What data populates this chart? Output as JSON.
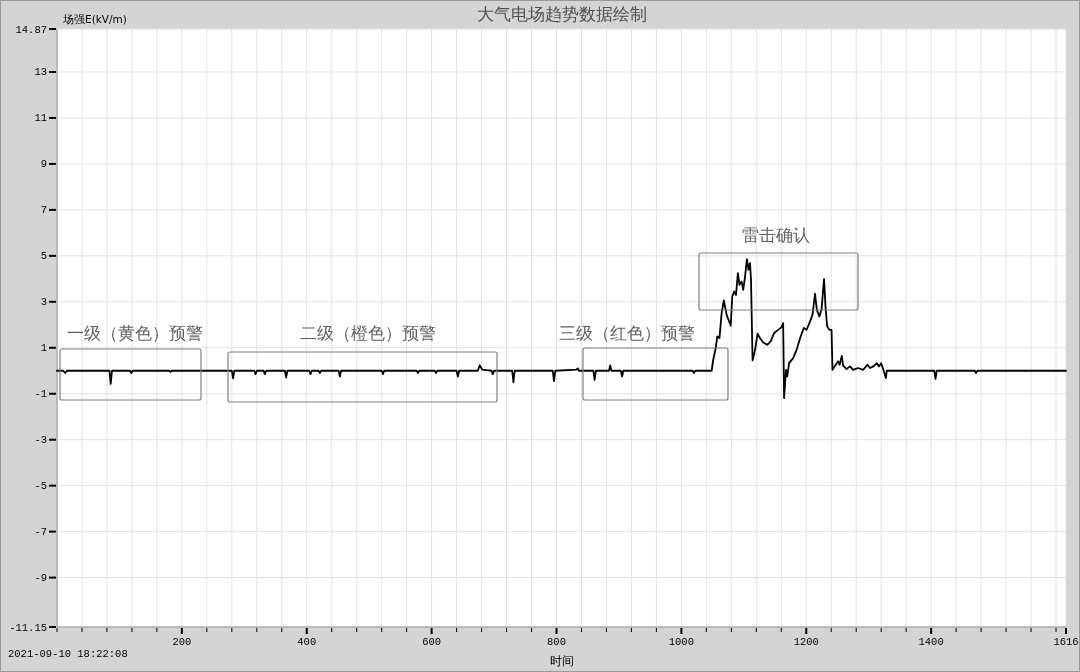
{
  "chart_data": {
    "type": "line",
    "title": "大气电场趋势数据绘制",
    "xlabel": "时间",
    "ylabel": "场强E(kV/m)",
    "annotations": [
      "2021-09-10 18:22:08",
      "一级（黄色）预警",
      "二级（橙色）预警",
      "三级（红色）预警",
      "雷击确认"
    ],
    "x": [
      0,
      10,
      13,
      16,
      60,
      84,
      86,
      88,
      117,
      119,
      121,
      180,
      182,
      184,
      280,
      282,
      284,
      316,
      318,
      320,
      331,
      333,
      335,
      365,
      367,
      369,
      404,
      406,
      408,
      419,
      421,
      423,
      451,
      453,
      455,
      520,
      522,
      524,
      576,
      578,
      580,
      605,
      607,
      609,
      640,
      642,
      644,
      674,
      677,
      681,
      696,
      698,
      700,
      729,
      731,
      733,
      794,
      796,
      798,
      832,
      834,
      836,
      859,
      861,
      863,
      884,
      886,
      888,
      903,
      905,
      907,
      1018,
      1020,
      1022,
      1048.5,
      1051,
      1055,
      1057.5,
      1061,
      1064.5,
      1068,
      1072.5,
      1075.5,
      1079,
      1081.5,
      1084.5,
      1087.5,
      1090.5,
      1093,
      1096.5,
      1099,
      1102,
      1105,
      1107.5,
      1110,
      1111.5,
      1114,
      1118,
      1122,
      1126,
      1131,
      1137.5,
      1143,
      1148.5,
      1155,
      1160.5,
      1163,
      1164.5,
      1167.5,
      1169.5,
      1172.5,
      1179,
      1184.5,
      1191,
      1196,
      1200.5,
      1206,
      1210,
      1214,
      1217,
      1221,
      1224.5,
      1228.5,
      1231,
      1233.5,
      1237,
      1240.5,
      1242,
      1245.5,
      1251,
      1253.5,
      1257,
      1259,
      1264.5,
      1270,
      1275,
      1283,
      1291,
      1298,
      1302,
      1307.5,
      1313,
      1316.5,
      1320,
      1323.5,
      1327.5,
      1329,
      1405,
      1407,
      1409,
      1470,
      1472,
      1474,
      1616
    ],
    "series": [
      {
        "color": "#000000",
        "values": [
          0,
          0,
          -0.1,
          0,
          0,
          0,
          -0.57,
          0,
          0,
          -0.1,
          0,
          0,
          -0.05,
          0,
          0,
          -0.33,
          0,
          0,
          -0.15,
          0,
          0,
          -0.15,
          0,
          0,
          -0.3,
          0,
          0,
          -0.15,
          0,
          0,
          -0.1,
          0,
          0,
          -0.25,
          0,
          0,
          -0.15,
          0,
          0,
          -0.1,
          0,
          0,
          -0.1,
          0,
          0,
          -0.25,
          0,
          0,
          0.24,
          0.05,
          0,
          -0.15,
          0,
          0,
          -0.5,
          0,
          0,
          -0.45,
          0,
          0.05,
          0.1,
          0,
          0,
          -0.4,
          0,
          0,
          0.23,
          0,
          0,
          -0.25,
          0,
          0,
          -0.1,
          0,
          0,
          0.48,
          0.99,
          1.49,
          1.42,
          2.51,
          3.06,
          2.43,
          2.22,
          1.96,
          3.23,
          3.45,
          3.3,
          4.25,
          3.74,
          3.88,
          3.52,
          4.1,
          4.86,
          4.39,
          4.68,
          3.96,
          0.45,
          0.91,
          1.61,
          1.42,
          1.23,
          1.13,
          1.28,
          1.64,
          1.78,
          1.9,
          2.07,
          -1.19,
          0.04,
          -0.25,
          0.33,
          0.55,
          0.91,
          1.49,
          1.86,
          1.78,
          2.14,
          2.43,
          3.35,
          2.65,
          2.36,
          2.68,
          3.99,
          2.72,
          1.93,
          1.78,
          1.78,
          0.04,
          0.19,
          0.41,
          0.26,
          0.65,
          0.22,
          0.07,
          0.19,
          0.04,
          0.12,
          0.04,
          0.26,
          0.12,
          0.19,
          0.33,
          0.19,
          0.33,
          0.04,
          -0.32,
          0,
          0,
          -0.35,
          0,
          0,
          -0.1,
          0,
          0
        ]
      }
    ],
    "xlim": [
      0,
      1616
    ],
    "ylim": [
      -11.15,
      14.87
    ],
    "xticks": [
      {
        "value": 0,
        "label": null
      },
      {
        "value": 40,
        "label": null
      },
      {
        "value": 80,
        "label": null
      },
      {
        "value": 120,
        "label": null
      },
      {
        "value": 160,
        "label": null
      },
      200,
      {
        "value": 240,
        "label": null
      },
      {
        "value": 280,
        "label": null
      },
      {
        "value": 320,
        "label": null
      },
      {
        "value": 360,
        "label": null
      },
      400,
      {
        "value": 440,
        "label": null
      },
      {
        "value": 480,
        "label": null
      },
      {
        "value": 520,
        "label": null
      },
      {
        "value": 560,
        "label": null
      },
      600,
      {
        "value": 640,
        "label": null
      },
      {
        "value": 680,
        "label": null
      },
      {
        "value": 720,
        "label": null
      },
      {
        "value": 760,
        "label": null
      },
      800,
      {
        "value": 840,
        "label": null
      },
      {
        "value": 880,
        "label": null
      },
      {
        "value": 920,
        "label": null
      },
      {
        "value": 960,
        "label": null
      },
      1000,
      {
        "value": 1040,
        "label": null
      },
      {
        "value": 1080,
        "label": null
      },
      {
        "value": 1120,
        "label": null
      },
      {
        "value": 1160,
        "label": null
      },
      1200,
      {
        "value": 1240,
        "label": null
      },
      {
        "value": 1280,
        "label": null
      },
      {
        "value": 1320,
        "label": null
      },
      {
        "value": 1360,
        "label": null
      },
      1400,
      {
        "value": 1440,
        "label": null
      },
      {
        "value": 1480,
        "label": null
      },
      {
        "value": 1520,
        "label": null
      },
      {
        "value": 1560,
        "label": null
      },
      {
        "value": 1600,
        "label": null
      },
      1616
    ],
    "yticks": [
      -11.15,
      -9,
      -7,
      -5,
      -3,
      -1,
      1,
      3,
      5,
      7,
      9,
      11,
      13,
      14.87
    ],
    "grid": true,
    "marker": "none",
    "line_style": "solid"
  }
}
